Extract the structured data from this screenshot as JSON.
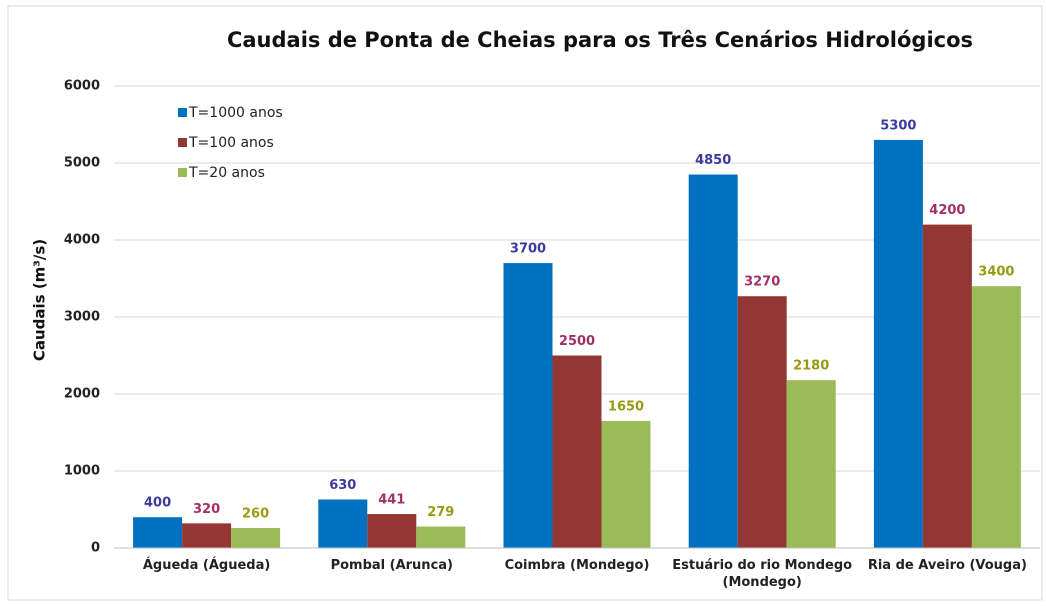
{
  "chart_data": {
    "type": "bar",
    "title": "Caudais de Ponta de Cheias para os Três Cenários Hidrológicos",
    "y_label": "Caudais (m³/s)",
    "categories": [
      "Águeda (Águeda)",
      "Pombal (Arunca)",
      "Coimbra (Mondego)",
      "Estuário do rio Mondego (Mondego)",
      "Ria de Aveiro (Vouga)"
    ],
    "series": [
      {
        "name": "T=1000 anos",
        "color": "#0070c0",
        "label_color": "#3b3b9e",
        "values": [
          400,
          630,
          3700,
          4850,
          5300
        ]
      },
      {
        "name": "T=100 anos",
        "color": "#943634",
        "label_color": "#a0306a",
        "values": [
          320,
          441,
          2500,
          3270,
          4200
        ]
      },
      {
        "name": "T=20 anos",
        "color": "#9bbb59",
        "label_color": "#9a9a10",
        "values": [
          260,
          279,
          1650,
          2180,
          3400
        ]
      }
    ],
    "ylim": [
      0,
      6000
    ],
    "yticks": [
      0,
      1000,
      2000,
      3000,
      4000,
      5000,
      6000
    ],
    "grid": true,
    "legend": "top-left"
  }
}
